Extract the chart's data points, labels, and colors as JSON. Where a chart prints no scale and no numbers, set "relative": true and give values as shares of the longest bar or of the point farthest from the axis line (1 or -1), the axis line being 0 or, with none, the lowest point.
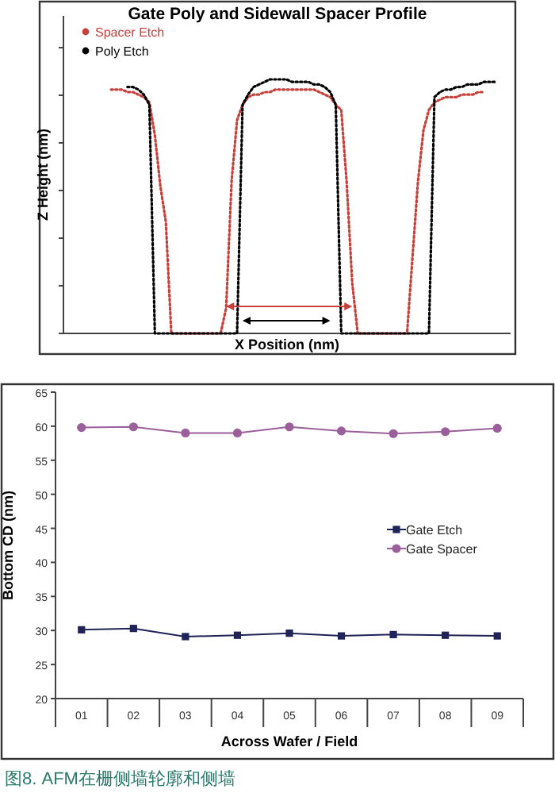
{
  "chart_data": [
    {
      "type": "line",
      "title": "Gate Poly and Sidewall Spacer Profile",
      "xlabel": "X Position (nm)",
      "ylabel": "Z Height (nm)",
      "relative": true,
      "legend": "top left",
      "line_style": "dotted",
      "categories": [
        null,
        null,
        null,
        null,
        null,
        null,
        null,
        null,
        null,
        null,
        null,
        null,
        null,
        null,
        null,
        null,
        null,
        null,
        null,
        null,
        null,
        null,
        null,
        null,
        null,
        null,
        null,
        null,
        null,
        null,
        null,
        null,
        null,
        null,
        null,
        null,
        null,
        null,
        null,
        null,
        null,
        null,
        null,
        null,
        null,
        null,
        null,
        null,
        null,
        null,
        null,
        null,
        null,
        null,
        null,
        null,
        null,
        null,
        null,
        null,
        null,
        null,
        null,
        null,
        null,
        null,
        null,
        null,
        null,
        null,
        null
      ],
      "series": [
        {
          "name": "Spacer Etch",
          "color": "#c8403a",
          "values": [
            0.96,
            0.96,
            0.96,
            0.95,
            0.95,
            0.94,
            0.93,
            0.91,
            0.78,
            0.58,
            0.44,
            0,
            0,
            0,
            0,
            0,
            0,
            0,
            0,
            0,
            0,
            0.1,
            0.6,
            0.84,
            0.9,
            0.93,
            0.94,
            0.94,
            0.95,
            0.95,
            0.96,
            0.96,
            0.96,
            0.96,
            0.96,
            0.96,
            0.96,
            0.96,
            0.95,
            0.94,
            0.93,
            0.9,
            0.88,
            0.59,
            0.2,
            0,
            0,
            0,
            0,
            0,
            0,
            0,
            0,
            0,
            0,
            0.3,
            0.6,
            0.8,
            0.88,
            0.91,
            0.92,
            0.93,
            0.93,
            0.93,
            0.94,
            0.94,
            0.94,
            0.95,
            0.95,
            null,
            null
          ]
        },
        {
          "name": "Poly Etch",
          "color": "#000000",
          "values": [
            null,
            null,
            null,
            0.97,
            0.97,
            0.96,
            0.94,
            0.9,
            0,
            0,
            0,
            0,
            0,
            0,
            0,
            0,
            0,
            0,
            0,
            0,
            0,
            0,
            0,
            0,
            0.9,
            0.94,
            0.97,
            0.98,
            0.99,
            1.0,
            1.0,
            1.0,
            1.0,
            0.99,
            0.99,
            0.99,
            0.99,
            0.98,
            0.98,
            0.97,
            0.95,
            0.9,
            0,
            0,
            0,
            0,
            0,
            0,
            0,
            0,
            0,
            0,
            0,
            0,
            0,
            0,
            0,
            0,
            0,
            0.93,
            0.95,
            0.96,
            0.96,
            0.97,
            0.97,
            0.98,
            0.98,
            0.98,
            0.99,
            0.99,
            0.99
          ]
        }
      ]
    },
    {
      "type": "line",
      "xlabel": "Across Wafer / Field",
      "ylabel": "Bottom CD (nm)",
      "ylim": [
        20,
        65
      ],
      "yticks": [
        20,
        25,
        30,
        35,
        40,
        45,
        50,
        55,
        60,
        65
      ],
      "legend": "right",
      "grid": false,
      "categories": [
        "01",
        "02",
        "03",
        "04",
        "05",
        "06",
        "07",
        "08",
        "09"
      ],
      "series": [
        {
          "name": "Gate Etch",
          "color": "#1f2357",
          "marker": "square",
          "values": [
            30.1,
            30.3,
            29.1,
            29.3,
            29.6,
            29.2,
            29.4,
            29.3,
            29.2
          ]
        },
        {
          "name": "Gate Spacer",
          "color": "#9b5f9b",
          "marker": "circle",
          "values": [
            59.8,
            59.9,
            59.0,
            59.0,
            59.9,
            59.3,
            58.9,
            59.2,
            59.7
          ]
        }
      ],
      "annotations": [
        "图8. AFM在栅侧墙轮廓和侧墙"
      ]
    }
  ]
}
